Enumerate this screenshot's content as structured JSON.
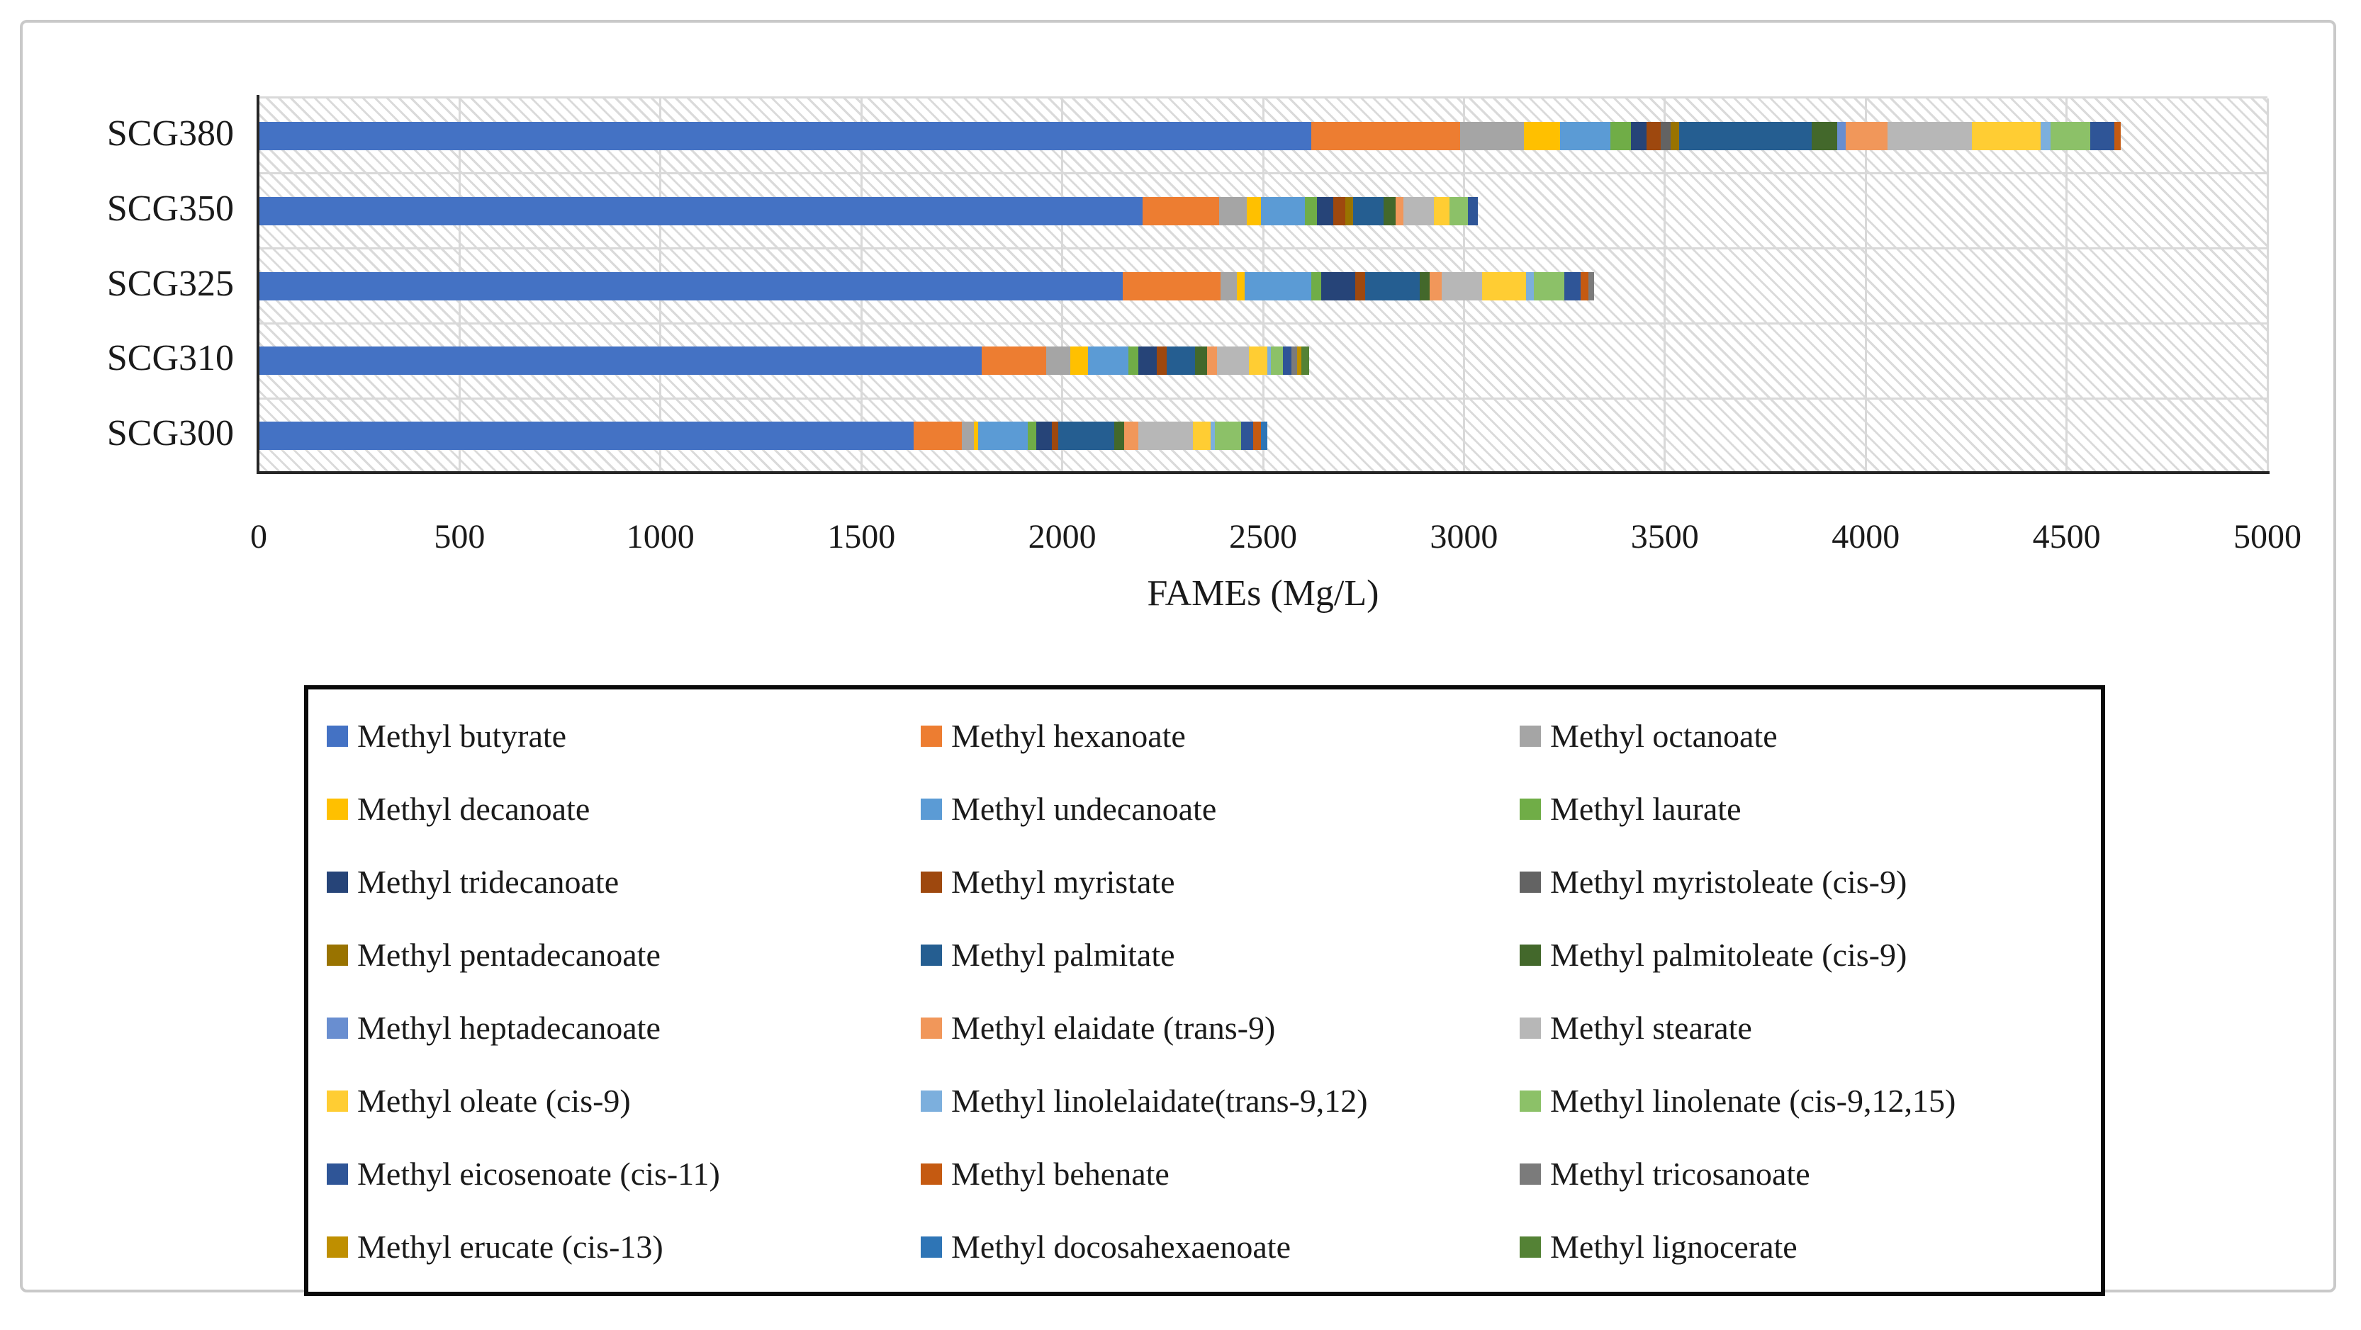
{
  "chart_data": {
    "type": "bar",
    "orientation": "horizontal",
    "stacked": true,
    "title": "",
    "xlabel": "FAMEs (Mg/L)",
    "ylabel": "",
    "xlim": [
      0,
      5000
    ],
    "x_ticks": [
      0,
      500,
      1000,
      1500,
      2000,
      2500,
      3000,
      3500,
      4000,
      4500,
      5000
    ],
    "grid": true,
    "legend_position": "bottom",
    "plot_background": "white with light gray diagonal hatch",
    "categories": [
      "SCG380",
      "SCG350",
      "SCG325",
      "SCG310",
      "SCG300"
    ],
    "category_totals_approx": [
      4640,
      3035,
      3325,
      2615,
      2510
    ],
    "series": [
      {
        "name": "Methyl butyrate",
        "color": "#4472C4",
        "values": [
          2620,
          2200,
          2150,
          1800,
          1630
        ]
      },
      {
        "name": "Methyl hexanoate",
        "color": "#ED7D31",
        "values": [
          370,
          190,
          245,
          160,
          120
        ]
      },
      {
        "name": "Methyl octanoate",
        "color": "#A5A5A5",
        "values": [
          160,
          70,
          40,
          60,
          30
        ]
      },
      {
        "name": "Methyl decanoate",
        "color": "#FFC000",
        "values": [
          90,
          35,
          20,
          45,
          10
        ]
      },
      {
        "name": "Methyl undecanoate",
        "color": "#5B9BD5",
        "values": [
          125,
          110,
          165,
          100,
          125
        ]
      },
      {
        "name": "Methyl laurate",
        "color": "#70AD47",
        "values": [
          50,
          30,
          25,
          25,
          20
        ]
      },
      {
        "name": "Methyl tridecanoate",
        "color": "#264478",
        "values": [
          40,
          40,
          85,
          45,
          40
        ]
      },
      {
        "name": "Methyl myristate",
        "color": "#9E480E",
        "values": [
          35,
          30,
          25,
          25,
          15
        ]
      },
      {
        "name": "Methyl myristoleate (cis-9)",
        "color": "#636363",
        "values": [
          25,
          0,
          0,
          0,
          0
        ]
      },
      {
        "name": "Methyl pentadecanoate",
        "color": "#997300",
        "values": [
          20,
          20,
          0,
          0,
          0
        ]
      },
      {
        "name": "Methyl palmitate",
        "color": "#255E91",
        "values": [
          330,
          75,
          135,
          70,
          140
        ]
      },
      {
        "name": "Methyl palmitoleate (cis-9)",
        "color": "#43682B",
        "values": [
          65,
          30,
          25,
          30,
          25
        ]
      },
      {
        "name": "Methyl heptadecanoate",
        "color": "#698ED0",
        "values": [
          20,
          0,
          0,
          0,
          0
        ]
      },
      {
        "name": "Methyl elaidate (trans-9)",
        "color": "#F1975A",
        "values": [
          105,
          20,
          30,
          25,
          35
        ]
      },
      {
        "name": "Methyl stearate",
        "color": "#B7B7B7",
        "values": [
          210,
          75,
          100,
          80,
          135
        ]
      },
      {
        "name": "Methyl oleate (cis-9)",
        "color": "#FFCD33",
        "values": [
          170,
          40,
          110,
          45,
          45
        ]
      },
      {
        "name": "Methyl linolelaidate(trans-9,12)",
        "color": "#7CAFDD",
        "values": [
          25,
          0,
          20,
          10,
          10
        ]
      },
      {
        "name": "Methyl linolenate (cis-9,12,15)",
        "color": "#8CC168",
        "values": [
          100,
          45,
          75,
          30,
          65
        ]
      },
      {
        "name": "Methyl eicosenoate (cis-11)",
        "color": "#2F5597",
        "values": [
          60,
          25,
          40,
          20,
          30
        ]
      },
      {
        "name": "Methyl behenate",
        "color": "#C55A11",
        "values": [
          15,
          0,
          20,
          0,
          20
        ]
      },
      {
        "name": "Methyl tricosanoate",
        "color": "#7B7B7B",
        "values": [
          0,
          0,
          15,
          15,
          0
        ]
      },
      {
        "name": "Methyl erucate (cis-13)",
        "color": "#BF8F00",
        "values": [
          0,
          0,
          0,
          10,
          0
        ]
      },
      {
        "name": "Methyl docosahexaenoate",
        "color": "#2E75B6",
        "values": [
          0,
          0,
          0,
          0,
          15
        ]
      },
      {
        "name": "Methyl lignocerate",
        "color": "#548235",
        "values": [
          0,
          0,
          0,
          20,
          0
        ]
      }
    ]
  }
}
